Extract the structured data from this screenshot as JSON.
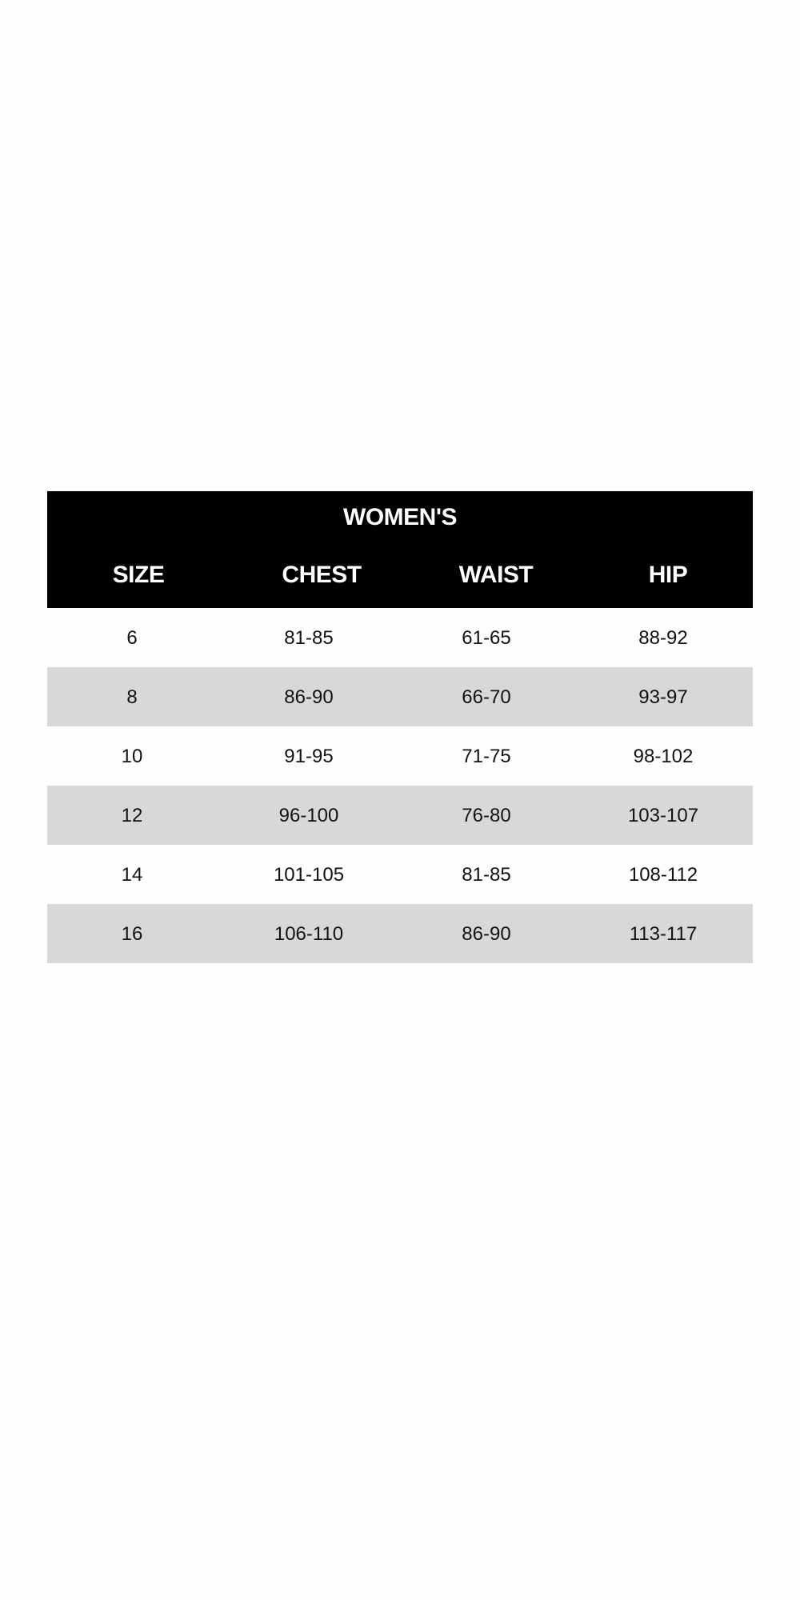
{
  "table": {
    "title": "WOMEN'S",
    "headers": [
      "SIZE",
      "CHEST",
      "WAIST",
      "HIP"
    ],
    "rows": [
      [
        "6",
        "81-85",
        "61-65",
        "88-92"
      ],
      [
        "8",
        "86-90",
        "66-70",
        "93-97"
      ],
      [
        "10",
        "91-95",
        "71-75",
        "98-102"
      ],
      [
        "12",
        "96-100",
        "76-80",
        "103-107"
      ],
      [
        "14",
        "101-105",
        "81-85",
        "108-112"
      ],
      [
        "16",
        "106-110",
        "86-90",
        "113-117"
      ]
    ],
    "colors": {
      "header_bg": "#000000",
      "header_text": "#ffffff",
      "alt_row_bg": "#d8d8d8"
    }
  }
}
